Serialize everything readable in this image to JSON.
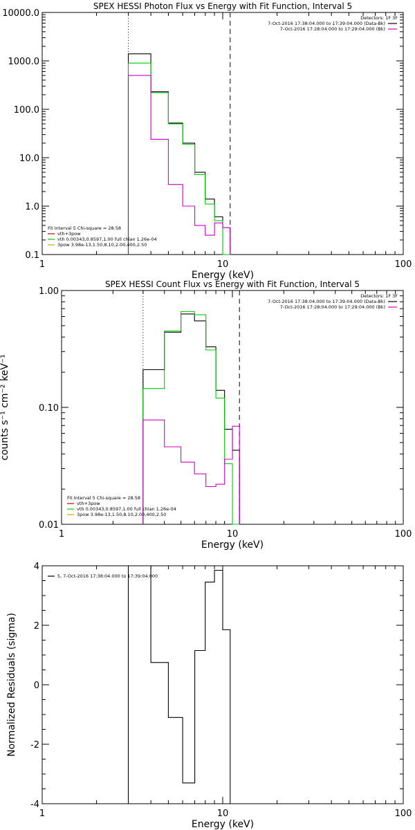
{
  "chart_data": [
    {
      "type": "line",
      "title": "SPEX HESSI Photon Flux vs Energy with Fit Function, Interval 5",
      "xlabel": "Energy (keV)",
      "ylabel": "",
      "xscale": "log",
      "yscale": "log",
      "xlim": [
        1,
        100
      ],
      "ylim": [
        0.1,
        10000
      ],
      "x_ticks": [
        1,
        10,
        100
      ],
      "x_tick_labels": [
        "1",
        "10",
        "100"
      ],
      "y_ticks": [
        0.1,
        1,
        10,
        100,
        1000,
        10000
      ],
      "y_tick_labels": [
        "0.1",
        "1.0",
        "10.0",
        "100.0",
        "1000.0",
        "10000.0"
      ],
      "vlines": [
        {
          "x": 3.0,
          "style": "dotted"
        },
        {
          "x": 11.0,
          "style": "dashed"
        }
      ],
      "legend_right": {
        "header": "Detectors: 1F 3F",
        "entries": [
          {
            "text": "7-Oct-2016 17:38:04.000 to 17:39:04.000 (Data-Bk)",
            "color": "#000000"
          },
          {
            "text": "7-Oct-2016 17:28:04.000 to 17:29:04.000 (Bk)",
            "color": "#cc00cc"
          }
        ]
      },
      "legend_left": {
        "header": "Fit Interval 5   Chi-square = 28.58",
        "entries": [
          {
            "text": "vth+3pow",
            "color": "#cc0000"
          },
          {
            "text": "vth 0.00343,0.8597,1.00  full chian 1.26e-04",
            "color": "#00cc00"
          },
          {
            "text": "3pow 3.98e-13,1.50,8.10,2.00,400,2.50",
            "color": "#ccaa00"
          }
        ]
      },
      "edges": [
        3,
        4,
        5,
        6,
        7,
        8,
        9,
        10,
        11
      ],
      "series": [
        {
          "color": "#000000",
          "values": [
            1400,
            230,
            52,
            20,
            5,
            1.4,
            0.6,
            0.36
          ]
        },
        {
          "color": "#00cc00",
          "values": [
            900,
            220,
            50,
            19,
            4.5,
            1.1,
            0.5,
            0.02
          ]
        },
        {
          "color": "#cc00cc",
          "values": [
            500,
            24,
            2.8,
            1.0,
            0.4,
            0.25,
            0.45,
            0.36
          ]
        }
      ]
    },
    {
      "type": "line",
      "title": "SPEX HESSI Count Flux vs Energy with Fit Function, Interval 5",
      "xlabel": "Energy (keV)",
      "ylabel": "counts s⁻¹ cm⁻² keV⁻¹",
      "xscale": "log",
      "yscale": "log",
      "xlim": [
        1,
        100
      ],
      "ylim": [
        0.01,
        1
      ],
      "x_ticks": [
        1,
        10,
        100
      ],
      "x_tick_labels": [
        "1",
        "10",
        "100"
      ],
      "y_ticks": [
        0.01,
        0.1,
        1
      ],
      "y_tick_labels": [
        "0.01",
        "0.10",
        "1.00"
      ],
      "vlines": [
        {
          "x": 3.0,
          "style": "dotted"
        },
        {
          "x": 11.0,
          "style": "dashed"
        }
      ],
      "legend_right": {
        "header": "Detectors: 1F 3F",
        "entries": [
          {
            "text": "7-Oct-2016 17:38:04.000 to 17:39:04.000 (Data-Bk)",
            "color": "#000000"
          },
          {
            "text": "7-Oct-2016 17:28:04.000 to 17:29:04.000 (Bk)",
            "color": "#cc00cc"
          }
        ]
      },
      "legend_left": {
        "header": "Fit Interval 5   Chi-square = 28.58",
        "entries": [
          {
            "text": "vth+3pow",
            "color": "#cc0000"
          },
          {
            "text": "vth 0.00343,0.8597,1.00  full chian 1.26e-04",
            "color": "#00cc00"
          },
          {
            "text": "3pow 3.98e-13,1.50,8.10,2.00,400,2.50",
            "color": "#ccaa00"
          }
        ]
      },
      "edges": [
        3,
        4,
        5,
        6,
        7,
        8,
        9,
        10,
        11
      ],
      "series": [
        {
          "color": "#000000",
          "values": [
            0.21,
            0.44,
            0.63,
            0.55,
            0.33,
            0.14,
            0.065,
            0.043
          ]
        },
        {
          "color": "#00cc00",
          "values": [
            0.145,
            0.45,
            0.66,
            0.62,
            0.31,
            0.12,
            0.033,
            0.005
          ]
        },
        {
          "color": "#cc00cc",
          "values": [
            0.078,
            0.046,
            0.034,
            0.027,
            0.021,
            0.022,
            0.036,
            0.069
          ]
        }
      ]
    },
    {
      "type": "line",
      "title": "",
      "xlabel": "Energy (keV)",
      "ylabel": "Normalized Residuals (sigma)",
      "xscale": "log",
      "yscale": "linear",
      "xlim": [
        1,
        100
      ],
      "ylim": [
        -4,
        4
      ],
      "x_ticks": [
        1,
        10,
        100
      ],
      "x_tick_labels": [
        "1",
        "10",
        "100"
      ],
      "y_ticks": [
        -4,
        -2,
        0,
        2,
        4
      ],
      "y_tick_labels": [
        "-4",
        "-2",
        "0",
        "2",
        "4"
      ],
      "legend_left": {
        "header": "",
        "entries": [
          {
            "text": "5,  7-Oct-2016 17:38:04.000 to 17:39:04.000",
            "color": "#000000"
          }
        ]
      },
      "edges": [
        3,
        4,
        5,
        6,
        7,
        8,
        9,
        10,
        11
      ],
      "series": [
        {
          "color": "#000000",
          "values": [
            4.0,
            0.75,
            -1.1,
            -3.3,
            1.15,
            3.45,
            3.85,
            1.85
          ]
        }
      ]
    }
  ]
}
